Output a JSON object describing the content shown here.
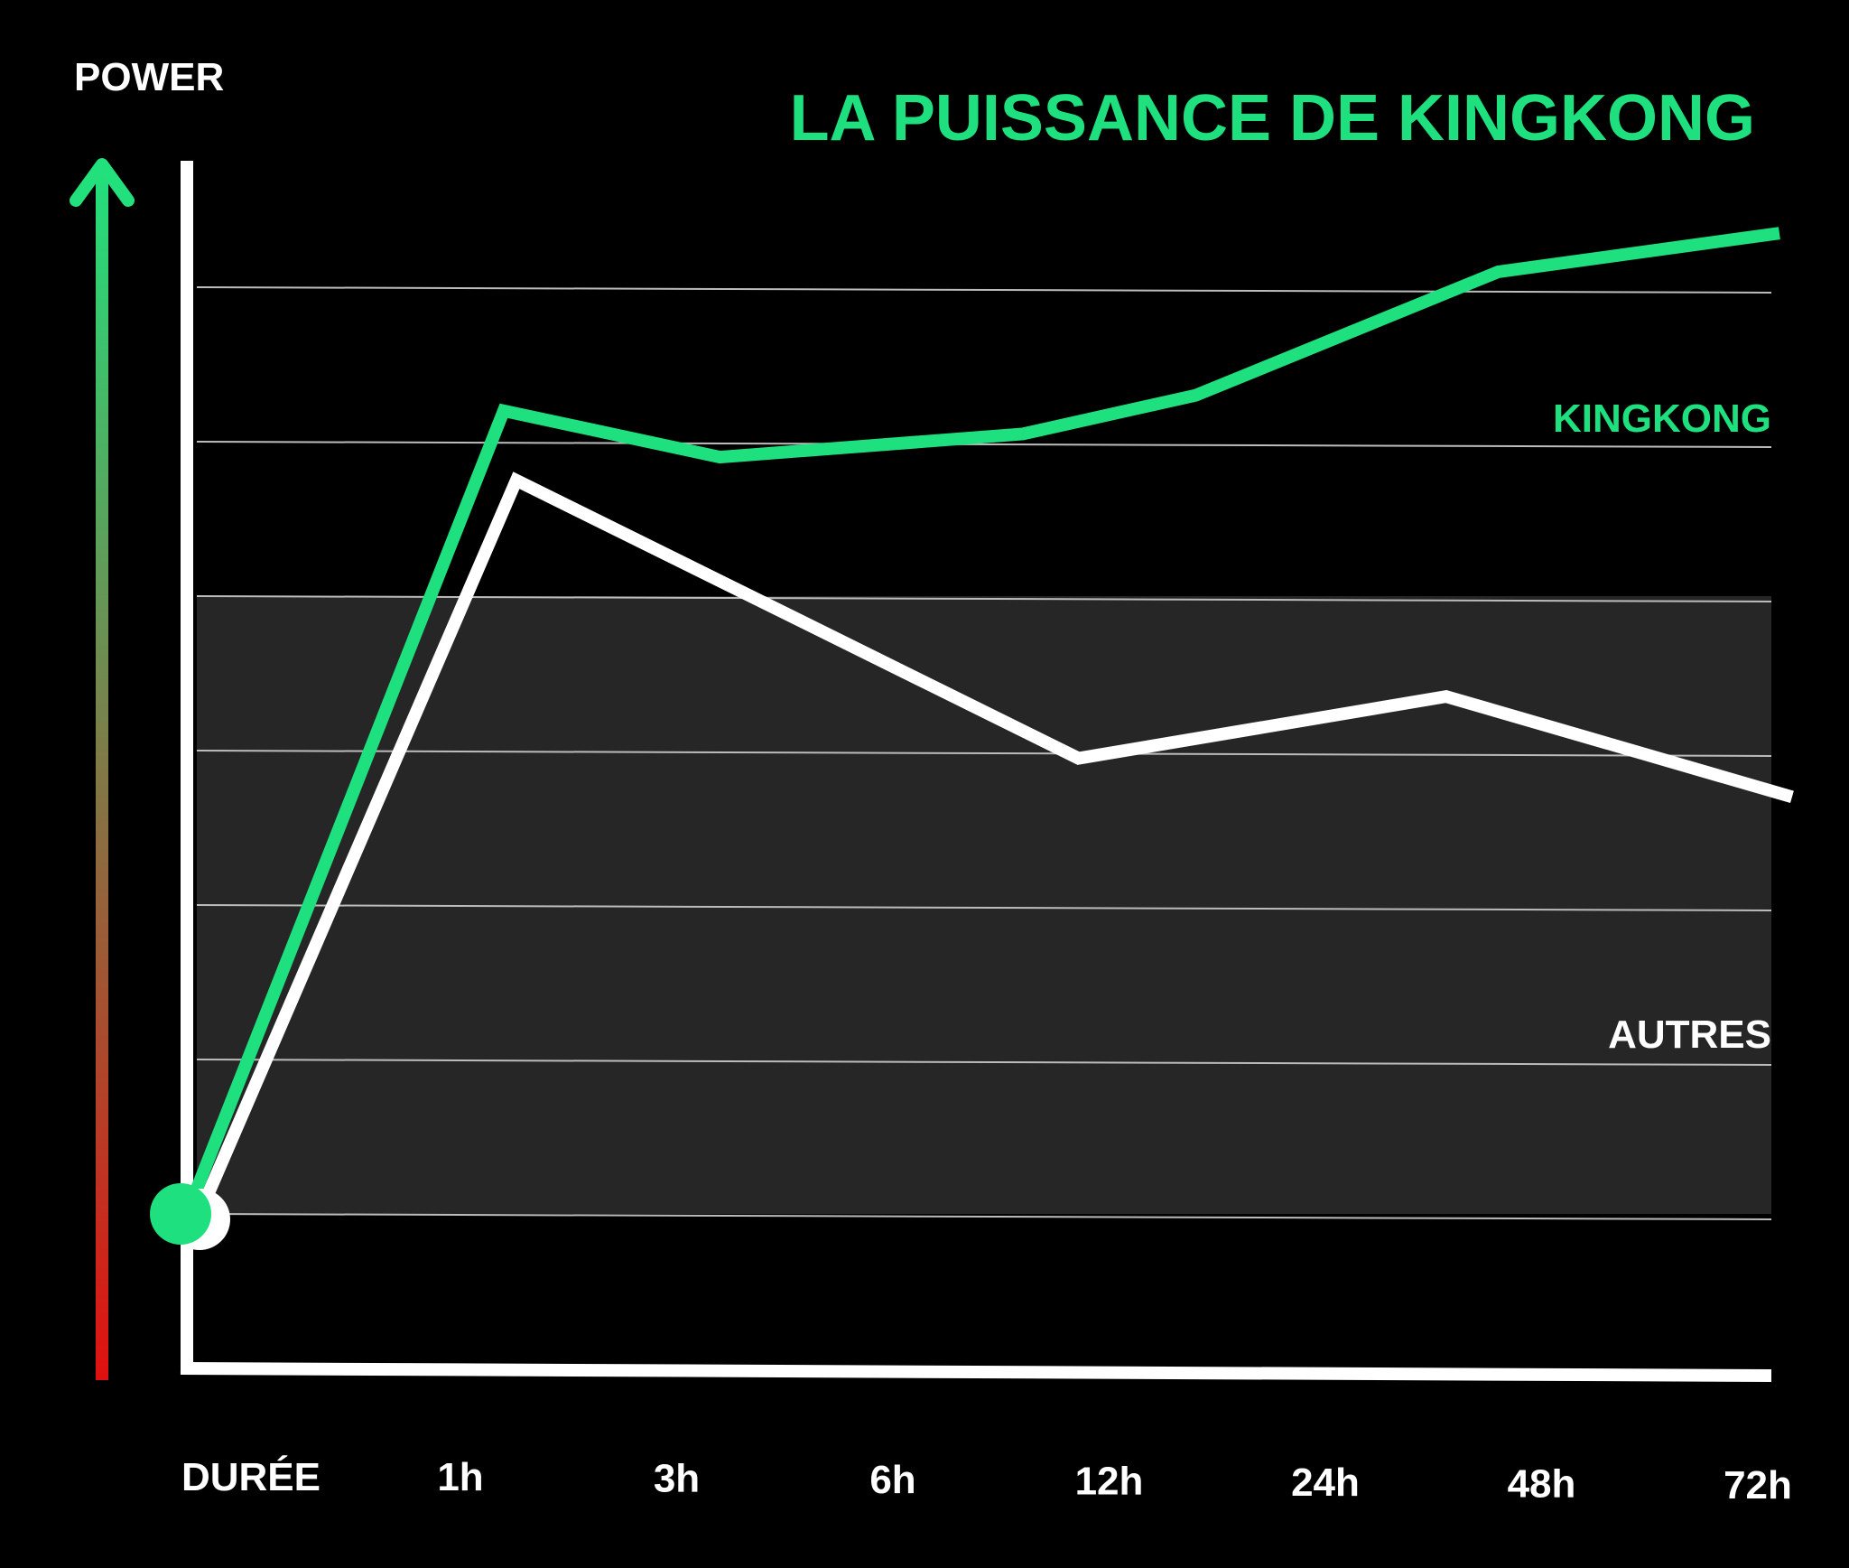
{
  "colors": {
    "background": "#000000",
    "band": "#262626",
    "grid": "#bcbcbc",
    "axis": "#ffffff",
    "accent": "#1ee07e",
    "title": "#1ee07e",
    "label": "#ffffff",
    "arrow_top": "#22e07c",
    "arrow_bottom": "#e01010"
  },
  "chart_data": {
    "type": "line",
    "title": "LA PUISSANCE DE KINGKONG",
    "ylabel": "POWER",
    "x_label": "DURÉE",
    "categories": [
      "1h",
      "3h",
      "6h",
      "12h",
      "24h",
      "48h",
      "72h"
    ],
    "ylim": [
      0,
      8
    ],
    "grid": true,
    "y_tick_labels_visible": false,
    "y_arrow_gradient": [
      "#22e07c",
      "#e01010"
    ],
    "series": [
      {
        "name": "KINGKONG",
        "color": "#1ee07e",
        "points": [
          {
            "x": 0,
            "y": 1.0
          },
          {
            "x": 1.2,
            "y": 6.2
          },
          {
            "x": 2.2,
            "y": 5.9
          },
          {
            "x": 3.6,
            "y": 6.05
          },
          {
            "x": 4.4,
            "y": 6.3
          },
          {
            "x": 5.8,
            "y": 7.1
          },
          {
            "x": 7.1,
            "y": 7.35
          }
        ]
      },
      {
        "name": "AUTRES",
        "color": "#ffffff",
        "points": [
          {
            "x": 0,
            "y": 1.0
          },
          {
            "x": 1.2,
            "y": 5.75
          },
          {
            "x": 3.8,
            "y": 3.95
          },
          {
            "x": 5.5,
            "y": 4.35
          },
          {
            "x": 7.1,
            "y": 3.7
          }
        ]
      }
    ]
  }
}
